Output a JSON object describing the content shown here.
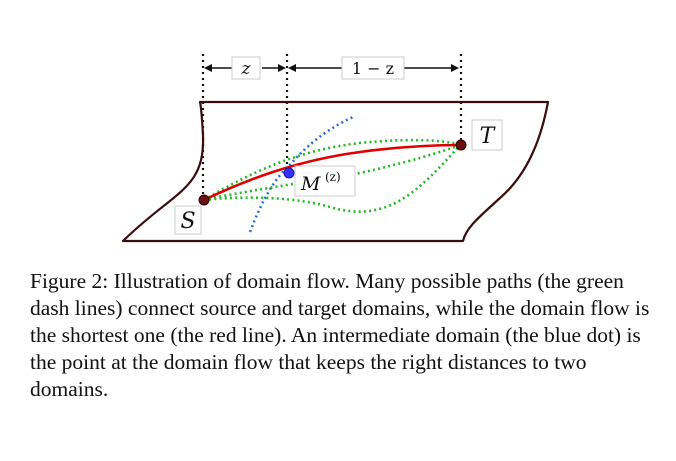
{
  "figure": {
    "label_z": "z",
    "label_1_minus_z": "1 − z",
    "label_source": "S",
    "label_target": "T",
    "label_intermediate": "M",
    "label_intermediate_sup": "(z)",
    "colors": {
      "domain_flow": "#e00000",
      "possible_paths": "#22bb22",
      "intermediate_path": "#2a6fd6",
      "intermediate_point": "#3333ff",
      "endpoint": "#6b1010",
      "outline": "#3a0d0d"
    }
  },
  "caption": "Figure 2: Illustration of domain flow. Many possible paths (the green dash lines) connect source and target domains, while the domain flow is the shortest one (the red line). An intermediate domain (the blue dot) is the point at the domain flow that keeps the right distances to two domains."
}
